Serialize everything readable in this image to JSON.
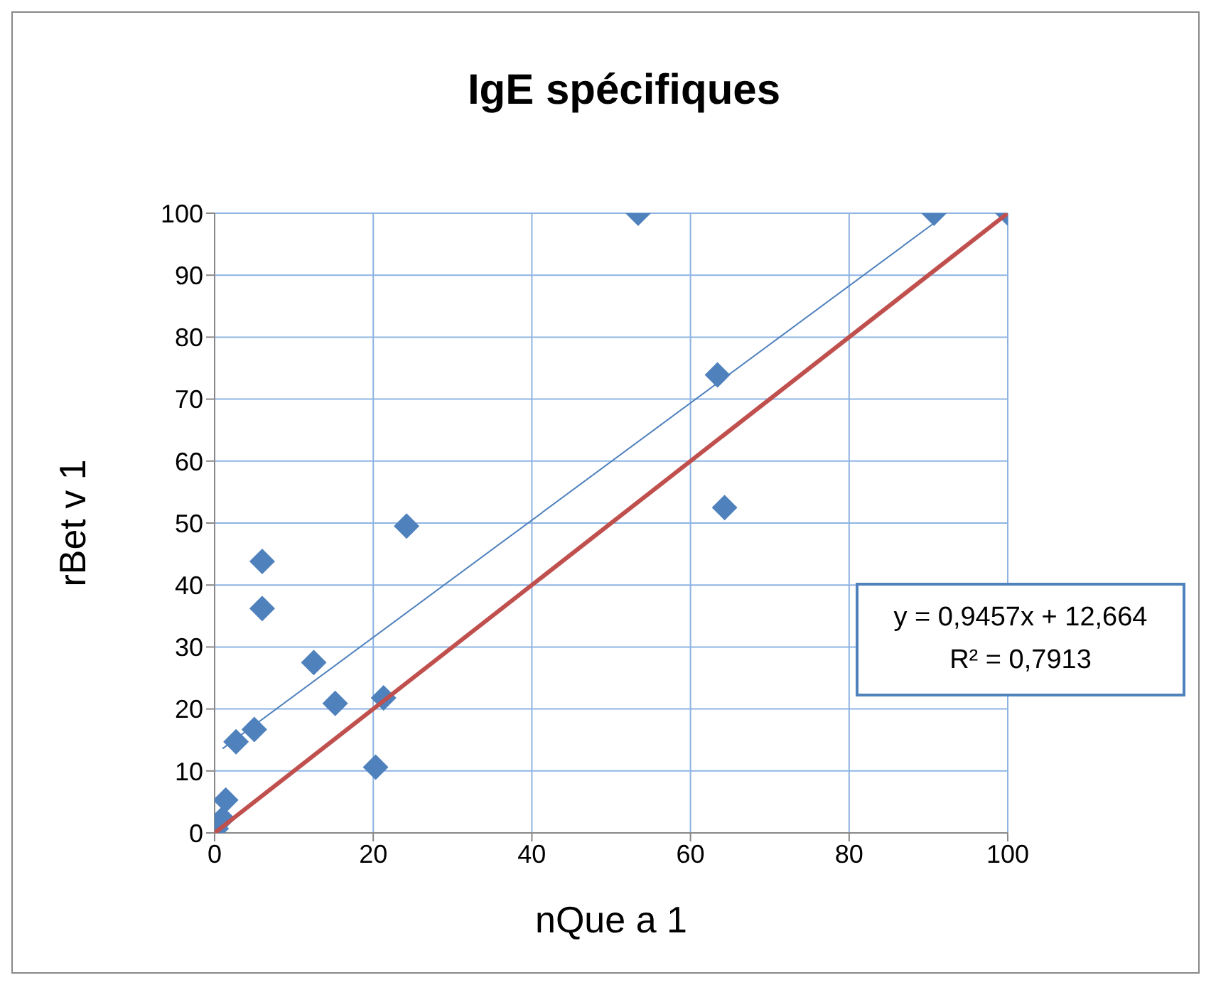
{
  "chart_data": {
    "type": "scatter",
    "title": "IgE spécifiques",
    "xlabel": "nQue a 1",
    "ylabel": "rBet v 1",
    "xlim": [
      0,
      100
    ],
    "xticks": [
      0,
      20,
      40,
      60,
      80,
      100
    ],
    "ylim": [
      0,
      100
    ],
    "yticks": [
      0,
      10,
      20,
      30,
      40,
      50,
      60,
      70,
      80,
      90,
      100
    ],
    "grid": true,
    "annotations": [
      "y = 0,9457x + 12,664",
      "R² = 0,7913"
    ],
    "series": [
      {
        "marker": "diamond",
        "color": "#4f81bd",
        "x": [
          0.2,
          1,
          1.4,
          2.7,
          5,
          6,
          6,
          12.5,
          15.2,
          20.3,
          21.3,
          24.2,
          53.4,
          63.4,
          64.3,
          90.7,
          100
        ],
        "values": [
          0.7,
          2.3,
          5.3,
          14.7,
          16.7,
          43.8,
          36.2,
          27.5,
          20.9,
          10.6,
          21.8,
          49.5,
          100,
          73.9,
          52.5,
          100,
          100
        ]
      },
      {
        "type": "line",
        "marker": "none",
        "color": "#c0504d",
        "x": [
          0,
          100
        ],
        "values": [
          0,
          100
        ]
      },
      {
        "type": "line",
        "marker": "none",
        "color": "#4f81bd",
        "x": [
          1,
          90.7
        ],
        "values": [
          13.6,
          98.4
        ]
      }
    ]
  }
}
